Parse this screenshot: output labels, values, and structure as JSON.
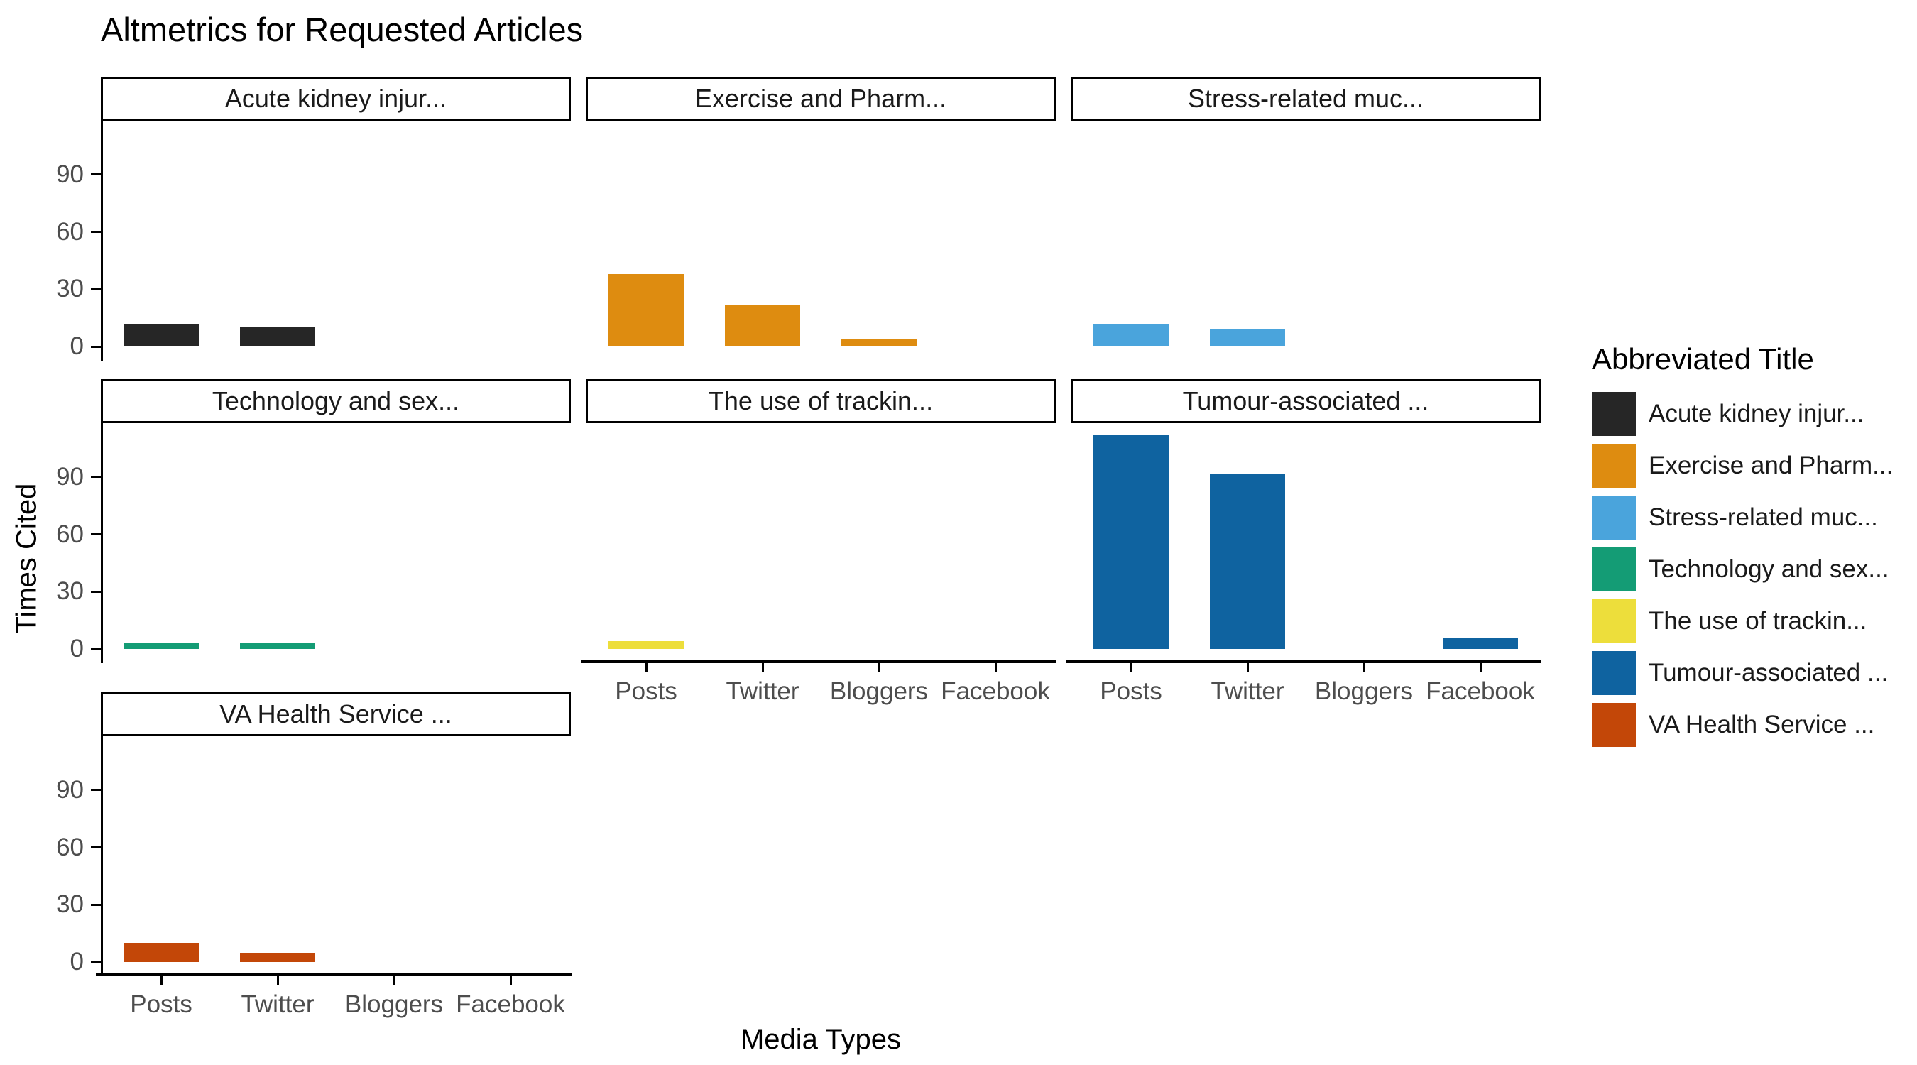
{
  "page_title": "Altmetrics for Requested Articles",
  "chart_data": {
    "type": "bar",
    "faceted": true,
    "title": "Altmetrics for Requested Articles",
    "xlabel": "Media Types",
    "ylabel": "Times Cited",
    "categories": [
      "Posts",
      "Twitter",
      "Bloggers",
      "Facebook"
    ],
    "y_ticks": [
      0,
      30,
      60,
      90
    ],
    "ylim": [
      0,
      118
    ],
    "grid": false,
    "legend_position": "right",
    "legend_title": "Abbreviated Title",
    "facets": [
      {
        "title": "Acute kidney injur...",
        "color": "#262626",
        "values": [
          12,
          10,
          0,
          0
        ]
      },
      {
        "title": "Exercise and Pharm...",
        "color": "#DE8C10",
        "values": [
          38,
          22,
          4,
          0
        ]
      },
      {
        "title": "Stress-related muc...",
        "color": "#4AA4DC",
        "values": [
          12,
          9,
          0,
          0
        ]
      },
      {
        "title": "Technology and sex...",
        "color": "#149C75",
        "values": [
          3,
          3,
          0,
          0
        ]
      },
      {
        "title": "The use of trackin...",
        "color": "#EDDE3B",
        "values": [
          4,
          0,
          0,
          0
        ]
      },
      {
        "title": "Tumour-associated ...",
        "color": "#0F63A0",
        "values": [
          112,
          92,
          0,
          6
        ]
      },
      {
        "title": "VA Health Service ...",
        "color": "#C34708",
        "values": [
          10,
          5,
          0,
          0
        ]
      }
    ]
  }
}
